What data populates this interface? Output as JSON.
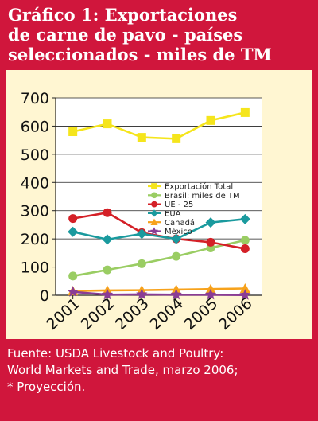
{
  "header": {
    "title_lines": [
      "Gráfico 1: Exportaciones",
      "de carne de pavo - países",
      "seleccionados -  miles de TM"
    ]
  },
  "footer": {
    "source_lines": [
      "Fuente: USDA Livestock and Poultry:",
      "World Markets and Trade, marzo 2006;",
      "* Proyección."
    ]
  },
  "colors": {
    "background": "#d0163c",
    "panel": "#fff6d2",
    "title_text": "#ffffff"
  },
  "chart_data": {
    "type": "line",
    "title": "",
    "xlabel": "",
    "ylabel": "",
    "x": [
      "2001",
      "2002",
      "2003",
      "2004",
      "2005",
      "2006"
    ],
    "ylim": [
      0,
      700
    ],
    "yticks": [
      0,
      100,
      200,
      300,
      400,
      500,
      600,
      700
    ],
    "grid": true,
    "legend": "right",
    "series": [
      {
        "name": "Exportación Total",
        "color": "#f5e51c",
        "marker": "square",
        "values": [
          580,
          608,
          560,
          555,
          620,
          648
        ]
      },
      {
        "name": "Brasil: miles de TM",
        "color": "#9acd63",
        "marker": "circle",
        "values": [
          68,
          90,
          112,
          138,
          168,
          195
        ]
      },
      {
        "name": "UE - 25",
        "color": "#d42027",
        "marker": "circle",
        "values": [
          272,
          293,
          222,
          200,
          188,
          165
        ]
      },
      {
        "name": "EUA",
        "color": "#1a9a9e",
        "marker": "diamond",
        "values": [
          225,
          198,
          218,
          200,
          258,
          270
        ]
      },
      {
        "name": "Canadá",
        "color": "#f7a21b",
        "marker": "triangle",
        "values": [
          15,
          17,
          18,
          20,
          22,
          24
        ]
      },
      {
        "name": "México",
        "color": "#8a3c95",
        "marker": "star",
        "values": [
          12,
          2,
          3,
          2,
          2,
          1
        ]
      }
    ]
  }
}
